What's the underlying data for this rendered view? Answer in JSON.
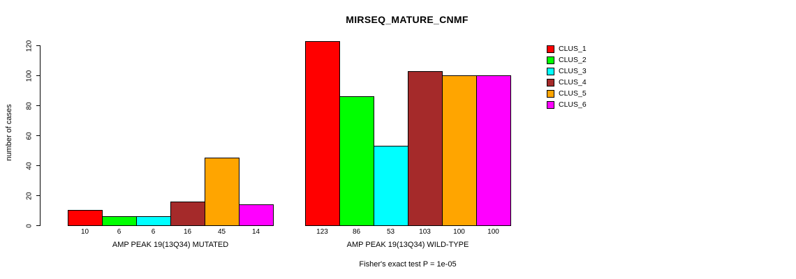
{
  "chart_data": {
    "type": "bar",
    "title": "MIRSEQ_MATURE_CNMF",
    "subtitle": "Fisher's exact test P = 1e-05",
    "ylabel": "number of cases",
    "xlabel": "",
    "ylim": [
      0,
      120
    ],
    "yticks": [
      0,
      20,
      40,
      60,
      80,
      100,
      120
    ],
    "grid": false,
    "legend_position": "right",
    "categories": [
      "AMP PEAK 19(13Q34) MUTATED",
      "AMP PEAK 19(13Q34) WILD-TYPE"
    ],
    "series": [
      {
        "name": "CLUS_1",
        "color": "#FF0000",
        "values": [
          10,
          123
        ]
      },
      {
        "name": "CLUS_2",
        "color": "#00FF00",
        "values": [
          6,
          86
        ]
      },
      {
        "name": "CLUS_3",
        "color": "#00FFFF",
        "values": [
          6,
          53
        ]
      },
      {
        "name": "CLUS_4",
        "color": "#A52A2A",
        "values": [
          16,
          103
        ]
      },
      {
        "name": "CLUS_5",
        "color": "#FFA500",
        "values": [
          45,
          100
        ]
      },
      {
        "name": "CLUS_6",
        "color": "#FF00FF",
        "values": [
          14,
          100
        ]
      }
    ],
    "bar_value_labels": [
      [
        10,
        6,
        6,
        16,
        45,
        14
      ],
      [
        123,
        86,
        53,
        103,
        100,
        100
      ]
    ]
  }
}
